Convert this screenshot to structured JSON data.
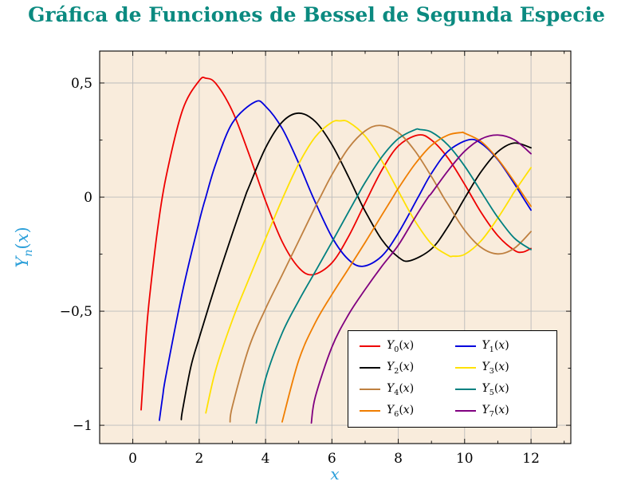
{
  "colors": {
    "title": "#0b8a80",
    "axis_label": "#2b9fd9",
    "grid": "#bbbbbb",
    "plot_background": "#f9ecdc",
    "legend_background": "#ffffff",
    "border": "#000000",
    "tick_label": "#000000"
  },
  "chart_data": {
    "type": "line",
    "title": "Gráfica de Funciones de Bessel de Segunda Especie",
    "xlabel": "x",
    "ylabel": "Y_n(x)",
    "xlim": [
      -1.0,
      13.2
    ],
    "ylim": [
      -1.08,
      0.64
    ],
    "grid": true,
    "legend_position": "bottom-right",
    "x_ticks": [
      0,
      2,
      4,
      6,
      8,
      10,
      12
    ],
    "x_tick_labels": [
      "0",
      "2",
      "4",
      "6",
      "8",
      "10",
      "12"
    ],
    "x_minor_ticks": [
      1,
      3,
      5,
      7,
      9,
      11,
      13
    ],
    "y_ticks": [
      0.5,
      0,
      -0.5,
      -1
    ],
    "y_tick_labels": [
      "0,5",
      "0",
      "−0,5",
      "−1"
    ],
    "y_minor_ticks": [
      0.25,
      -0.25,
      -0.75
    ],
    "series": [
      {
        "name": "Y_0(x)",
        "n": 0,
        "color": "#ee0000",
        "points": [
          [
            0.25,
            -0.932
          ],
          [
            0.4,
            -0.606
          ],
          [
            0.5,
            -0.444
          ],
          [
            0.75,
            -0.137
          ],
          [
            1,
            0.088
          ],
          [
            1.5,
            0.382
          ],
          [
            2,
            0.51
          ],
          [
            2.2,
            0.521
          ],
          [
            2.5,
            0.498
          ],
          [
            3,
            0.377
          ],
          [
            3.5,
            0.189
          ],
          [
            4,
            -0.017
          ],
          [
            4.5,
            -0.195
          ],
          [
            5,
            -0.309
          ],
          [
            5.43,
            -0.34
          ],
          [
            6,
            -0.288
          ],
          [
            6.5,
            -0.173
          ],
          [
            7,
            -0.026
          ],
          [
            7.5,
            0.117
          ],
          [
            8,
            0.224
          ],
          [
            8.6,
            0.272
          ],
          [
            9,
            0.25
          ],
          [
            9.5,
            0.171
          ],
          [
            10,
            0.056
          ],
          [
            10.5,
            -0.068
          ],
          [
            11,
            -0.169
          ],
          [
            11.5,
            -0.233
          ],
          [
            11.75,
            -0.241
          ],
          [
            12,
            -0.225
          ]
        ]
      },
      {
        "name": "Y_1(x)",
        "n": 1,
        "color": "#0000dd",
        "points": [
          [
            0.8,
            -0.978
          ],
          [
            0.9,
            -0.873
          ],
          [
            1,
            -0.781
          ],
          [
            1.5,
            -0.412
          ],
          [
            2,
            -0.107
          ],
          [
            2.2,
            0
          ],
          [
            2.5,
            0.146
          ],
          [
            3,
            0.325
          ],
          [
            3.68,
            0.417
          ],
          [
            4,
            0.398
          ],
          [
            4.5,
            0.301
          ],
          [
            5,
            0.148
          ],
          [
            5.43,
            0
          ],
          [
            6,
            -0.175
          ],
          [
            6.5,
            -0.274
          ],
          [
            6.94,
            -0.303
          ],
          [
            7.5,
            -0.259
          ],
          [
            8,
            -0.158
          ],
          [
            8.6,
            0
          ],
          [
            9,
            0.104
          ],
          [
            9.5,
            0.201
          ],
          [
            10.12,
            0.251
          ],
          [
            10.5,
            0.235
          ],
          [
            11,
            0.164
          ],
          [
            11.5,
            0.058
          ],
          [
            11.75,
            0
          ],
          [
            12,
            -0.057
          ]
        ]
      },
      {
        "name": "Y_2(x)",
        "n": 2,
        "color": "#000000",
        "points": [
          [
            1.46,
            -0.975
          ],
          [
            1.5,
            -0.932
          ],
          [
            1.75,
            -0.743
          ],
          [
            2,
            -0.617
          ],
          [
            2.5,
            -0.381
          ],
          [
            3,
            -0.16
          ],
          [
            3.38,
            0
          ],
          [
            3.5,
            0.045
          ],
          [
            4,
            0.216
          ],
          [
            4.5,
            0.329
          ],
          [
            5,
            0.368
          ],
          [
            5.5,
            0.331
          ],
          [
            6,
            0.23
          ],
          [
            6.5,
            0.089
          ],
          [
            6.79,
            0
          ],
          [
            7,
            -0.061
          ],
          [
            7.5,
            -0.186
          ],
          [
            8,
            -0.263
          ],
          [
            8.35,
            -0.279
          ],
          [
            9,
            -0.227
          ],
          [
            9.5,
            -0.129
          ],
          [
            10.02,
            0
          ],
          [
            10.5,
            0.112
          ],
          [
            11,
            0.199
          ],
          [
            11.5,
            0.237
          ],
          [
            12,
            0.216
          ]
        ]
      },
      {
        "name": "Y_3(x)",
        "n": 3,
        "color": "#ffe100",
        "points": [
          [
            2.2,
            -0.946
          ],
          [
            2.5,
            -0.756
          ],
          [
            3,
            -0.539
          ],
          [
            3.5,
            -0.358
          ],
          [
            4,
            -0.182
          ],
          [
            4.53,
            0
          ],
          [
            5,
            0.146
          ],
          [
            5.5,
            0.264
          ],
          [
            6,
            0.328
          ],
          [
            6.25,
            0.334
          ],
          [
            6.5,
            0.329
          ],
          [
            7,
            0.268
          ],
          [
            7.5,
            0.16
          ],
          [
            8,
            0.027
          ],
          [
            8.1,
            0
          ],
          [
            8.5,
            -0.104
          ],
          [
            9,
            -0.205
          ],
          [
            9.5,
            -0.255
          ],
          [
            9.65,
            -0.259
          ],
          [
            10,
            -0.251
          ],
          [
            10.5,
            -0.191
          ],
          [
            11,
            -0.092
          ],
          [
            11.4,
            0
          ],
          [
            11.5,
            0.024
          ],
          [
            12,
            0.129
          ]
        ]
      },
      {
        "name": "Y_4(x)",
        "n": 4,
        "color": "#bf8040",
        "points": [
          [
            2.93,
            -0.985
          ],
          [
            3,
            -0.917
          ],
          [
            3.5,
            -0.659
          ],
          [
            4,
            -0.489
          ],
          [
            4.5,
            -0.341
          ],
          [
            5,
            -0.192
          ],
          [
            5.5,
            -0.042
          ],
          [
            5.65,
            0
          ],
          [
            6,
            0.098
          ],
          [
            6.5,
            0.215
          ],
          [
            7,
            0.29
          ],
          [
            7.45,
            0.314
          ],
          [
            8,
            0.283
          ],
          [
            8.5,
            0.203
          ],
          [
            9,
            0.09
          ],
          [
            9.36,
            0
          ],
          [
            9.5,
            -0.032
          ],
          [
            10,
            -0.145
          ],
          [
            10.5,
            -0.221
          ],
          [
            11,
            -0.249
          ],
          [
            11.5,
            -0.224
          ],
          [
            12,
            -0.151
          ]
        ]
      },
      {
        "name": "Y_5(x)",
        "n": 5,
        "color": "#008080",
        "points": [
          [
            3.72,
            -0.99
          ],
          [
            4,
            -0.796
          ],
          [
            4.5,
            -0.596
          ],
          [
            5,
            -0.454
          ],
          [
            5.5,
            -0.326
          ],
          [
            6,
            -0.197
          ],
          [
            6.5,
            -0.065
          ],
          [
            6.75,
            0
          ],
          [
            7,
            0.064
          ],
          [
            7.5,
            0.175
          ],
          [
            8,
            0.256
          ],
          [
            8.5,
            0.295
          ],
          [
            8.65,
            0.296
          ],
          [
            9,
            0.285
          ],
          [
            9.5,
            0.228
          ],
          [
            10,
            0.136
          ],
          [
            10.5,
            0.023
          ],
          [
            10.6,
            0
          ],
          [
            11,
            -0.089
          ],
          [
            11.5,
            -0.18
          ],
          [
            12,
            -0.23
          ]
        ]
      },
      {
        "name": "Y_6(x)",
        "n": 6,
        "color": "#f07e00",
        "points": [
          [
            4.5,
            -0.985
          ],
          [
            5,
            -0.715
          ],
          [
            5.5,
            -0.55
          ],
          [
            6,
            -0.427
          ],
          [
            6.5,
            -0.314
          ],
          [
            7,
            -0.199
          ],
          [
            7.5,
            -0.08
          ],
          [
            7.84,
            0
          ],
          [
            8,
            0.038
          ],
          [
            8.5,
            0.144
          ],
          [
            9,
            0.227
          ],
          [
            9.5,
            0.272
          ],
          [
            9.9,
            0.283
          ],
          [
            10,
            0.28
          ],
          [
            10.5,
            0.243
          ],
          [
            11,
            0.167
          ],
          [
            11.5,
            0.067
          ],
          [
            11.81,
            0
          ],
          [
            12,
            -0.04
          ]
        ]
      },
      {
        "name": "Y_7(x)",
        "n": 7,
        "color": "#800080",
        "points": [
          [
            5.38,
            -0.99
          ],
          [
            5.5,
            -0.875
          ],
          [
            6,
            -0.657
          ],
          [
            6.5,
            -0.515
          ],
          [
            7,
            -0.405
          ],
          [
            7.5,
            -0.304
          ],
          [
            8,
            -0.211
          ],
          [
            8.5,
            -0.091
          ],
          [
            8.9,
            0
          ],
          [
            9,
            0.017
          ],
          [
            9.5,
            0.116
          ],
          [
            10,
            0.201
          ],
          [
            10.5,
            0.255
          ],
          [
            11,
            0.272
          ],
          [
            11.5,
            0.251
          ],
          [
            12,
            0.19
          ]
        ]
      }
    ]
  }
}
